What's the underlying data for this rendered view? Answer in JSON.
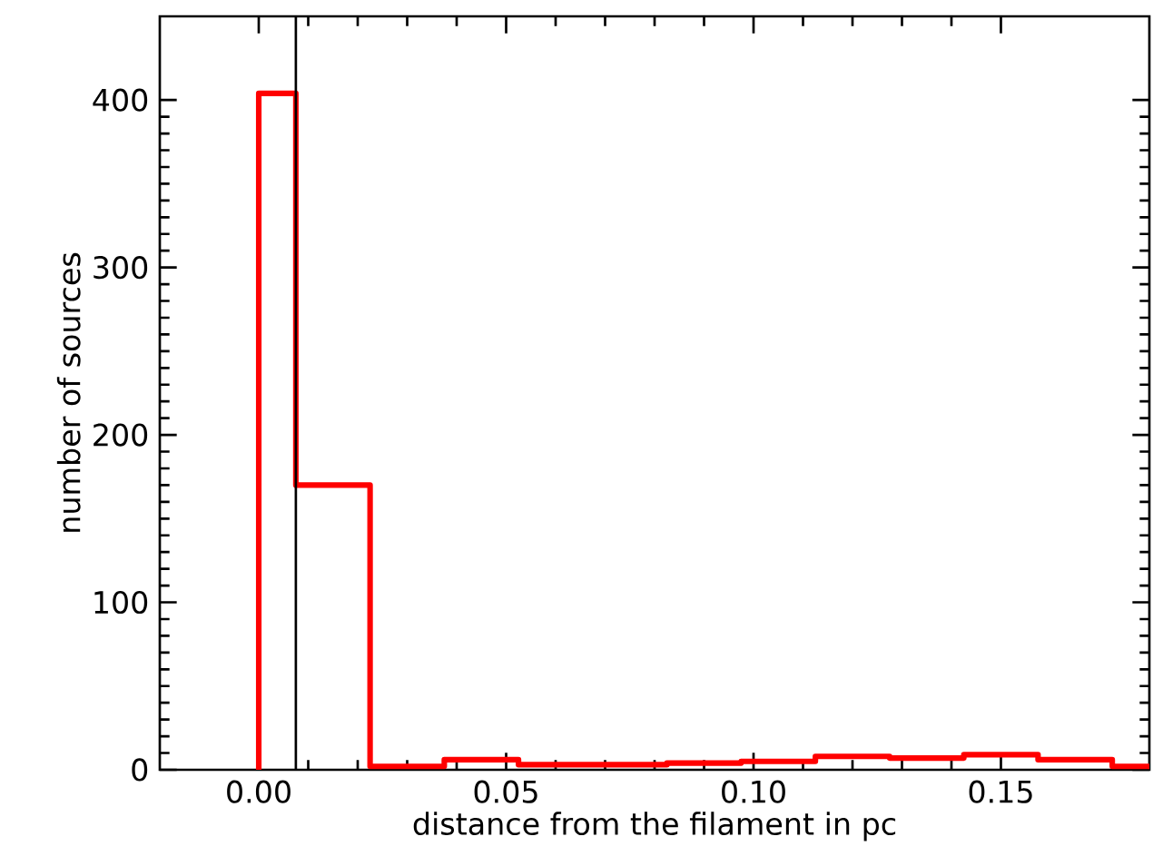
{
  "chart_data": {
    "type": "histogram",
    "xlabel": "distance from the filament in pc",
    "ylabel": "number of sources",
    "bins": [
      0,
      0.0075,
      0.0225,
      0.0375,
      0.0525,
      0.0675,
      0.0825,
      0.0975,
      0.1125,
      0.1275,
      0.1425,
      0.1575,
      0.1725,
      0.18
    ],
    "values": [
      404,
      170,
      2,
      6,
      3,
      3,
      4,
      5,
      8,
      7,
      9,
      6,
      2
    ],
    "color": "#ff0000",
    "xlim": [
      -0.02,
      0.18
    ],
    "ylim": [
      0,
      450
    ],
    "xticks": [
      {
        "value": 0,
        "label": "0.00"
      },
      0.05,
      {
        "value": 0.1,
        "label": "0.10"
      },
      0.15
    ],
    "yticks": [
      0,
      100,
      200,
      300,
      400
    ],
    "ref_lines": [
      {
        "axis": "x",
        "value": 0.0075,
        "color": "#000000"
      }
    ],
    "grid": false
  }
}
